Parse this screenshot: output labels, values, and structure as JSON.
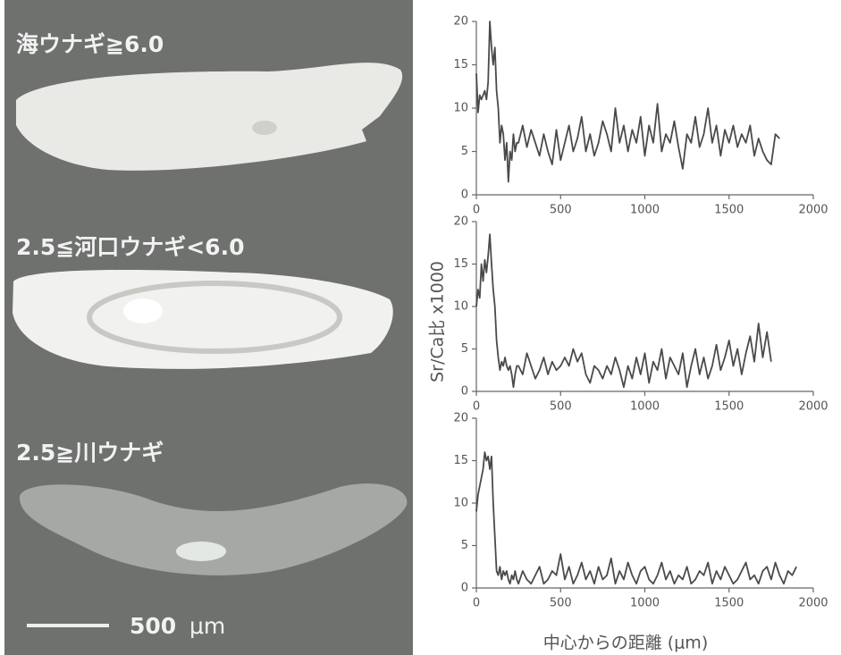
{
  "panel": {
    "labels": [
      "海ウナギ≧6.0",
      "2.5≦河口ウナギ<6.0",
      "2.5≧川ウナギ"
    ],
    "scale_value": "500",
    "scale_unit": "μm"
  },
  "figure": {
    "y_label": "Sr/Ca比 x1000",
    "x_label": "中心からの距離 (μm)"
  },
  "chart_data": [
    {
      "type": "line",
      "color": "#4a4a4a",
      "xlim": [
        0,
        2000
      ],
      "ylim": [
        0,
        20
      ],
      "xticks": [
        0,
        500,
        1000,
        1500,
        2000
      ],
      "yticks": [
        0,
        5,
        10,
        15,
        20
      ],
      "x": [
        0,
        10,
        20,
        30,
        40,
        50,
        60,
        70,
        80,
        90,
        100,
        110,
        120,
        130,
        140,
        150,
        160,
        170,
        180,
        190,
        200,
        210,
        220,
        230,
        240,
        250,
        275,
        300,
        325,
        350,
        375,
        400,
        425,
        450,
        475,
        500,
        525,
        550,
        575,
        600,
        625,
        650,
        675,
        700,
        725,
        750,
        775,
        800,
        825,
        850,
        875,
        900,
        925,
        950,
        975,
        1000,
        1025,
        1050,
        1075,
        1100,
        1125,
        1150,
        1175,
        1200,
        1225,
        1250,
        1275,
        1300,
        1325,
        1350,
        1375,
        1400,
        1425,
        1450,
        1475,
        1500,
        1525,
        1550,
        1575,
        1600,
        1625,
        1650,
        1675,
        1700,
        1725,
        1750,
        1775,
        1800
      ],
      "values": [
        14,
        9.5,
        11.5,
        11,
        11.5,
        12,
        11,
        13,
        20,
        17,
        15,
        17,
        12,
        10,
        6,
        8,
        7,
        4,
        6,
        1.5,
        5,
        4,
        7,
        5,
        6,
        6,
        8,
        5.5,
        7.5,
        6,
        4.5,
        7,
        5,
        3.5,
        7.5,
        4,
        6,
        8,
        5,
        6.5,
        9,
        5,
        7,
        4.5,
        6,
        8.5,
        7,
        5,
        10,
        6,
        8,
        5,
        7.5,
        6,
        9,
        4.5,
        8,
        6,
        10.5,
        5,
        7,
        6,
        8.5,
        5.5,
        3,
        7,
        6,
        9,
        5.5,
        7,
        10,
        6,
        8,
        4.5,
        7.5,
        6,
        8,
        5.5,
        7,
        6,
        8,
        4.5,
        6.5,
        5,
        4,
        3.5,
        7,
        6.5
      ]
    },
    {
      "type": "line",
      "color": "#4a4a4a",
      "xlim": [
        0,
        2000
      ],
      "ylim": [
        0,
        20
      ],
      "xticks": [
        0,
        500,
        1000,
        1500,
        2000
      ],
      "yticks": [
        0,
        5,
        10,
        15,
        20
      ],
      "x": [
        0,
        10,
        20,
        30,
        40,
        50,
        60,
        70,
        80,
        90,
        100,
        110,
        120,
        130,
        140,
        150,
        160,
        170,
        180,
        190,
        200,
        210,
        220,
        230,
        240,
        250,
        275,
        300,
        325,
        350,
        375,
        400,
        425,
        450,
        475,
        500,
        525,
        550,
        575,
        600,
        625,
        650,
        675,
        700,
        725,
        750,
        775,
        800,
        825,
        850,
        875,
        900,
        925,
        950,
        975,
        1000,
        1025,
        1050,
        1075,
        1100,
        1125,
        1150,
        1175,
        1200,
        1225,
        1250,
        1275,
        1300,
        1325,
        1350,
        1375,
        1400,
        1425,
        1450,
        1475,
        1500,
        1525,
        1550,
        1575,
        1600,
        1625,
        1650,
        1675,
        1700,
        1725,
        1750
      ],
      "values": [
        10,
        12,
        11,
        15,
        13,
        15.5,
        14,
        16,
        18.5,
        15,
        12,
        10,
        6,
        4,
        2.5,
        3.5,
        3,
        4,
        3,
        2.5,
        3,
        2,
        0.5,
        2,
        3,
        3,
        2,
        4.5,
        3,
        1.5,
        2.5,
        4,
        2,
        3.5,
        2.5,
        3,
        4,
        3,
        5,
        3.5,
        4.5,
        2,
        1,
        3,
        2.5,
        1.5,
        3,
        2,
        4,
        2.5,
        0.5,
        3,
        1.5,
        4,
        2,
        4.5,
        1,
        3.5,
        2.5,
        5,
        1.5,
        4,
        3,
        2,
        4.5,
        0.5,
        3,
        5,
        2,
        4,
        1.5,
        3,
        5.5,
        2.5,
        4,
        6,
        3,
        5,
        2,
        4.5,
        6.5,
        3.5,
        8,
        4,
        7,
        3.5
      ]
    },
    {
      "type": "line",
      "color": "#4a4a4a",
      "xlim": [
        0,
        2000
      ],
      "ylim": [
        0,
        20
      ],
      "xticks": [
        0,
        500,
        1000,
        1500,
        2000
      ],
      "yticks": [
        0,
        5,
        10,
        15,
        20
      ],
      "x": [
        0,
        10,
        20,
        30,
        40,
        50,
        60,
        70,
        80,
        90,
        100,
        110,
        120,
        130,
        140,
        150,
        160,
        170,
        180,
        190,
        200,
        210,
        220,
        230,
        240,
        250,
        275,
        300,
        325,
        350,
        375,
        400,
        425,
        450,
        475,
        500,
        525,
        550,
        575,
        600,
        625,
        650,
        675,
        700,
        725,
        750,
        775,
        800,
        825,
        850,
        875,
        900,
        925,
        950,
        975,
        1000,
        1025,
        1050,
        1075,
        1100,
        1125,
        1150,
        1175,
        1200,
        1225,
        1250,
        1275,
        1300,
        1325,
        1350,
        1375,
        1400,
        1425,
        1450,
        1475,
        1500,
        1525,
        1550,
        1575,
        1600,
        1625,
        1650,
        1675,
        1700,
        1725,
        1750,
        1775,
        1800,
        1825,
        1850,
        1875,
        1900
      ],
      "values": [
        9,
        11,
        12,
        13,
        14,
        16,
        15,
        15.5,
        14,
        15.5,
        10,
        6,
        2,
        1.5,
        2.5,
        1,
        2,
        1.5,
        2,
        1,
        0.5,
        1.5,
        1,
        2,
        1,
        0.5,
        2,
        1,
        0.5,
        1.5,
        2.5,
        0.5,
        1,
        2,
        1.5,
        4,
        1,
        2.5,
        0.5,
        1.5,
        3,
        1,
        2,
        0.5,
        2.5,
        1,
        1.5,
        3.5,
        0.5,
        2,
        1,
        3,
        1.5,
        0.5,
        2,
        2.5,
        1,
        0.5,
        1.5,
        3,
        1,
        2,
        0.5,
        1.5,
        1,
        2.5,
        0.5,
        1,
        2,
        1.5,
        3,
        0.5,
        2,
        1,
        2.5,
        1.5,
        0.5,
        1,
        2,
        3,
        1,
        1.5,
        0.5,
        2,
        2.5,
        1,
        3,
        1.5,
        0.5,
        2,
        1.5,
        2.5
      ]
    }
  ]
}
